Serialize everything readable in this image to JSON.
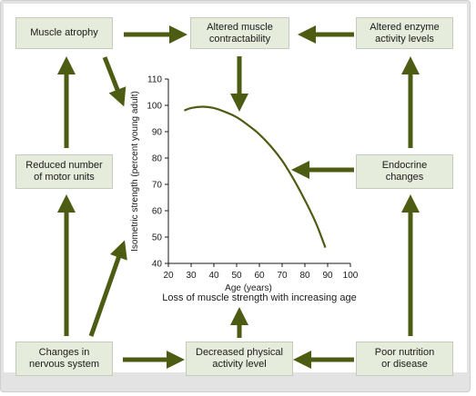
{
  "boxes": {
    "muscle_atrophy": "Muscle atrophy",
    "altered_contractability": "Altered muscle\ncontractability",
    "altered_enzyme": "Altered enzyme\nactivity levels",
    "reduced_motor_units": "Reduced number\nof motor units",
    "endocrine": "Endocrine\nchanges",
    "nervous_system": "Changes in\nnervous system",
    "decreased_activity": "Decreased physical\nactivity level",
    "poor_nutrition": "Poor nutrition\nor disease"
  },
  "colors": {
    "arrow": "#4d5c13",
    "curve": "#4d5c13",
    "box_fill": "#e6ecdc",
    "frame": "#e3e3e3"
  },
  "chart_data": {
    "type": "line",
    "title": "Loss of muscle strength with increasing age",
    "xlabel": "Age (years)",
    "ylabel": "Isometric strength (percent young adult)",
    "xlim": [
      20,
      100
    ],
    "ylim": [
      40,
      110
    ],
    "xticks": [
      20,
      30,
      40,
      50,
      60,
      70,
      80,
      90,
      100
    ],
    "yticks": [
      40,
      50,
      60,
      70,
      80,
      90,
      100,
      110
    ],
    "grid": false,
    "series": [
      {
        "x": [
          27,
          30,
          35,
          40,
          45,
          50,
          55,
          60,
          65,
          70,
          75,
          80,
          85,
          89
        ],
        "y": [
          98,
          99,
          99.5,
          99,
          97.5,
          95.5,
          92.5,
          89,
          84.5,
          79,
          72,
          64,
          55,
          46
        ]
      }
    ]
  }
}
